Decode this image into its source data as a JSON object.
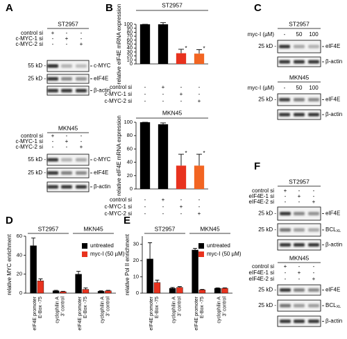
{
  "chart_data": [
    {
      "type": "bar",
      "panel_label": "B",
      "title": "ST2957",
      "ylabel": "relative eIF4E mRNA expression",
      "values": [
        100,
        100,
        27,
        26
      ],
      "errors": [
        0,
        4,
        10,
        10
      ],
      "colors": [
        "#000000",
        "#000000",
        "#e8321e",
        "#f26522"
      ],
      "annotations": [
        null,
        null,
        "*",
        "*"
      ],
      "ylim": [
        0,
        100
      ],
      "yticks": [
        0,
        10,
        20,
        30,
        40,
        50,
        60,
        70,
        80,
        90,
        100
      ],
      "conditions": [
        {
          "name": "control si",
          "signs": [
            "-",
            "+",
            "-",
            "-"
          ]
        },
        {
          "name": "c-MYC-1 si",
          "signs": [
            "-",
            "-",
            "+",
            "-"
          ]
        },
        {
          "name": "c-MYC-2 si",
          "signs": [
            "-",
            "-",
            "-",
            "+"
          ]
        }
      ]
    },
    {
      "type": "bar",
      "title": "MKN45",
      "ylabel": "relative eIF4E mRNA expression",
      "values": [
        100,
        97,
        35,
        35
      ],
      "errors": [
        0,
        2,
        17,
        17
      ],
      "colors": [
        "#000000",
        "#000000",
        "#e8321e",
        "#f26522"
      ],
      "annotations": [
        null,
        null,
        "*",
        "*"
      ],
      "ylim": [
        0,
        100
      ],
      "yticks": [
        0,
        20,
        40,
        60,
        80,
        100
      ],
      "conditions": [
        {
          "name": "control si",
          "signs": [
            "-",
            "+",
            "-",
            "-"
          ]
        },
        {
          "name": "c-MYC-1 si",
          "signs": [
            "-",
            "-",
            "+",
            "-"
          ]
        },
        {
          "name": "c-MYC-2 si",
          "signs": [
            "-",
            "-",
            "-",
            "+"
          ]
        }
      ]
    },
    {
      "type": "grouped_bar",
      "panel_label": "D",
      "ylabel": "relative MYC enrichment",
      "groups": [
        "ST2957",
        "MKN45"
      ],
      "categories": [
        [
          "eIF4E promoter",
          "E-Box -75"
        ],
        [
          "cyclophilin A",
          "3' control"
        ],
        [
          "eIF4E promoter",
          "E-Box -75"
        ],
        [
          "cyclophilin A",
          "3' control"
        ]
      ],
      "series": [
        {
          "name": "untreated",
          "color": "#000000",
          "values": [
            50,
            2.5,
            20,
            2
          ],
          "errors": [
            8,
            0.5,
            3,
            0.5
          ]
        },
        {
          "name": "myc-I (50 µM)",
          "color": "#e8321e",
          "values": [
            13,
            1.5,
            4,
            2.5
          ],
          "errors": [
            2,
            0.5,
            1.5,
            0.5
          ]
        }
      ],
      "ylim": [
        0,
        60
      ],
      "yticks": [
        0,
        20,
        40,
        60
      ]
    },
    {
      "type": "grouped_bar",
      "panel_label": "E",
      "ylabel": "relative Pol II enrichment",
      "groups": [
        "ST2957",
        "MKN45"
      ],
      "categories": [
        [
          "eIF4E promoter",
          "E-Box -75"
        ],
        [
          "cyclophilin A",
          "3' control"
        ],
        [
          "eIF4E promoter",
          "E-Box -75"
        ],
        [
          "cyclophilin A",
          "3' control"
        ]
      ],
      "series": [
        {
          "name": "untreated",
          "color": "#000000",
          "values": [
            21,
            3,
            26.5,
            3
          ],
          "errors": [
            10,
            0.5,
            1,
            0.3
          ]
        },
        {
          "name": "myc-I (50 µM)",
          "color": "#e8321e",
          "values": [
            6.5,
            3.5,
            2,
            3
          ],
          "errors": [
            1.5,
            0.5,
            0.3,
            0.3
          ]
        }
      ],
      "ylim": [
        0,
        35
      ],
      "yticks": [
        0,
        10,
        20,
        30
      ]
    }
  ],
  "blot_panels": [
    {
      "label": "A",
      "sections": [
        {
          "title": "ST2957",
          "conditions": [
            {
              "name": "control si",
              "signs": [
                "+",
                "-",
                "-"
              ]
            },
            {
              "name": "c-MYC-1 si",
              "signs": [
                "-",
                "+",
                "-"
              ]
            },
            {
              "name": "c-MYC-2 si",
              "signs": [
                "-",
                "-",
                "+"
              ]
            }
          ],
          "bands": [
            {
              "name": "c-MYC",
              "marker": "55 kD -"
            },
            {
              "name": "eIF4E",
              "marker": "25 kD -"
            },
            {
              "name": "β-actin"
            }
          ]
        },
        {
          "title": "MKN45",
          "conditions": [
            {
              "name": "control si",
              "signs": [
                "+",
                "-",
                "-"
              ]
            },
            {
              "name": "c-MYC-1 si",
              "signs": [
                "-",
                "+",
                "-"
              ]
            },
            {
              "name": "c-MYC-2 si",
              "signs": [
                "-",
                "-",
                "+"
              ]
            }
          ],
          "bands": [
            {
              "name": "c-MYC",
              "marker": "55 kD -"
            },
            {
              "name": "eIF4E",
              "marker": "25 kD -"
            },
            {
              "name": "β-actin"
            }
          ]
        }
      ]
    },
    {
      "label": "C",
      "sections": [
        {
          "title": "ST2957",
          "conditions": [
            {
              "name": "myc-I (µM)",
              "signs": [
                "-",
                "50",
                "100"
              ]
            }
          ],
          "bands": [
            {
              "name": "eIF4E",
              "marker": "25 kD -"
            },
            {
              "name": "β-actin"
            }
          ]
        },
        {
          "title": "MKN45",
          "conditions": [
            {
              "name": "myc-I (µM)",
              "signs": [
                "-",
                "50",
                "100"
              ]
            }
          ],
          "bands": [
            {
              "name": "eIF4E",
              "marker": "25 kD -"
            },
            {
              "name": "β-actin"
            }
          ]
        }
      ]
    },
    {
      "label": "F",
      "sections": [
        {
          "title": "ST2957",
          "conditions": [
            {
              "name": "control si",
              "signs": [
                "+",
                "-",
                "-"
              ]
            },
            {
              "name": "eIF4E-1 si",
              "signs": [
                "-",
                "+",
                "-"
              ]
            },
            {
              "name": "eIF4E-2 si",
              "signs": [
                "-",
                "-",
                "+"
              ]
            }
          ],
          "bands": [
            {
              "name": "eIF4E",
              "marker": "25 kD -"
            },
            {
              "name": "BCL",
              "subscript": "XL",
              "marker": "25 kD -"
            },
            {
              "name": "β-actin"
            }
          ]
        },
        {
          "title": "MKN45",
          "conditions": [
            {
              "name": "control si",
              "signs": [
                "+",
                "-",
                "-"
              ]
            },
            {
              "name": "eIF4E-1 si",
              "signs": [
                "-",
                "+",
                "-"
              ]
            },
            {
              "name": "eIF4E-2 si",
              "signs": [
                "-",
                "-",
                "+"
              ]
            }
          ],
          "bands": [
            {
              "name": "eIF4E",
              "marker": "25 kD -"
            },
            {
              "name": "BCL",
              "subscript": "XL",
              "marker": "25 kD -"
            },
            {
              "name": "β-actin"
            }
          ]
        }
      ]
    }
  ]
}
